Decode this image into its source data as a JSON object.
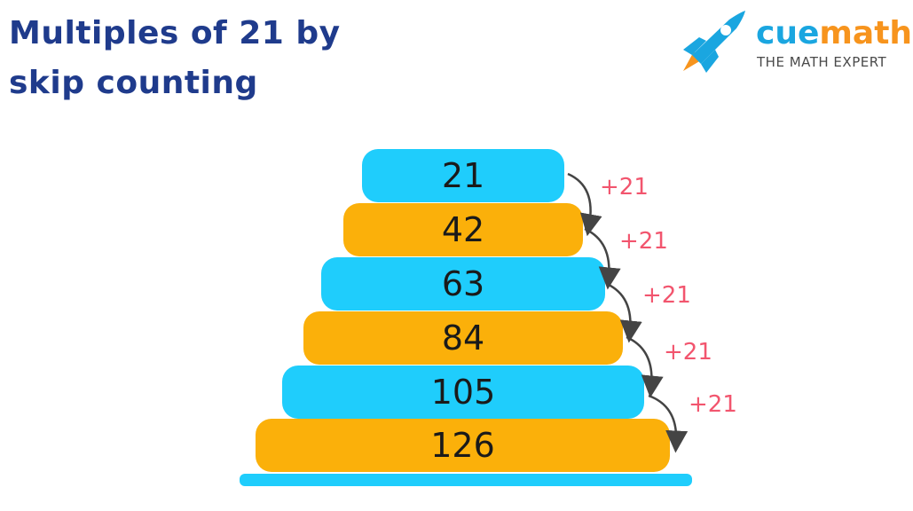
{
  "title_line1": "Multiples of 21 by",
  "title_line2": "skip counting",
  "logo": {
    "brand_part1": "cue",
    "brand_part2": "math",
    "tagline": "THE MATH EXPERT"
  },
  "multiples": [
    "21",
    "42",
    "63",
    "84",
    "105",
    "126"
  ],
  "increment_label": "+21",
  "colors": {
    "blue": "#1fcdfc",
    "orange": "#fbb00a",
    "title": "#1f3b8c",
    "increment": "#f2556e"
  }
}
